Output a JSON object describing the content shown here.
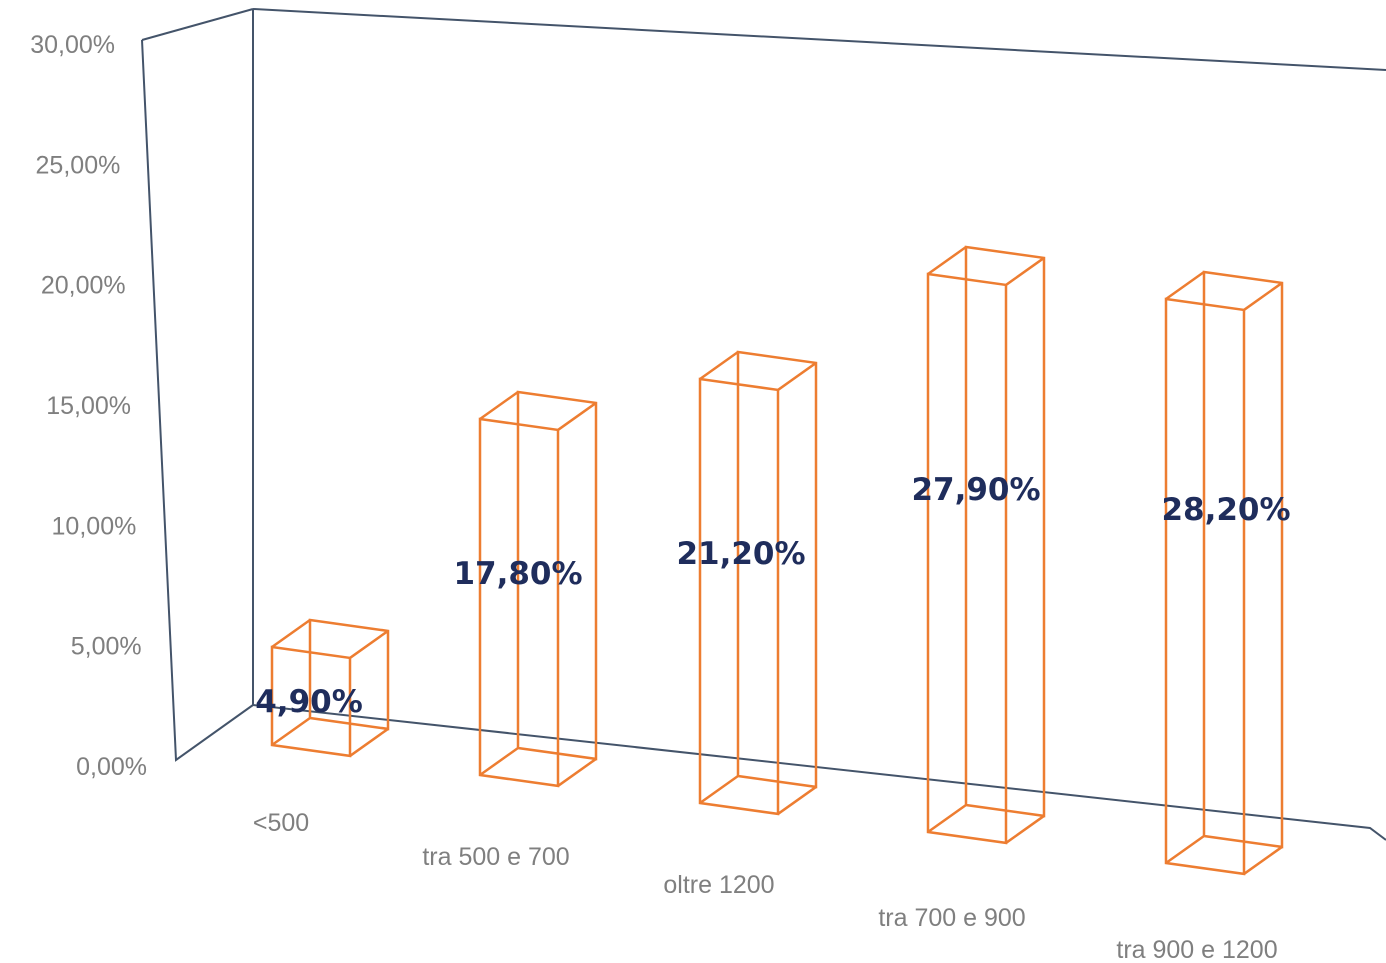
{
  "chart_data": {
    "type": "bar",
    "categories": [
      "<500",
      "tra 500 e 700",
      "oltre 1200",
      "tra 700 e 900",
      "tra 900 e 1200"
    ],
    "values": [
      4.9,
      17.8,
      21.2,
      27.9,
      28.2
    ],
    "data_labels": [
      "4,90%",
      "17,80%",
      "21,20%",
      "27,90%",
      "28,20%"
    ],
    "y_ticks": [
      "0,00%",
      "5,00%",
      "10,00%",
      "15,00%",
      "20,00%",
      "25,00%",
      "30,00%"
    ],
    "ylim": [
      0,
      30
    ],
    "title": "",
    "xlabel": "",
    "ylabel": "",
    "style": "3d-column-outline",
    "colors": {
      "bar_outline": "#ed7d31",
      "frame": "#44546a",
      "data_label": "#1f2d5c",
      "axis_text": "#7f7f7f"
    }
  }
}
